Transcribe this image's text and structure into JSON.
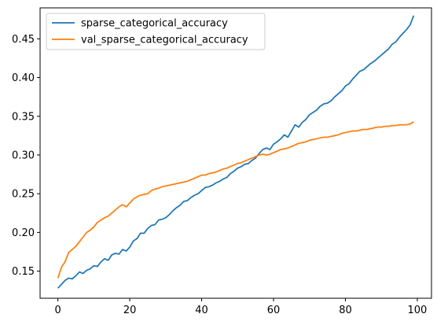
{
  "chart_data": {
    "type": "line",
    "title": "",
    "xlabel": "",
    "ylabel": "",
    "xlim": [
      -4.95,
      103.95
    ],
    "ylim": [
      0.115,
      0.49
    ],
    "xticks": [
      0,
      20,
      40,
      60,
      80,
      100
    ],
    "yticks": [
      0.15,
      0.2,
      0.25,
      0.3,
      0.35,
      0.4,
      0.45
    ],
    "xtick_labels": [
      "0",
      "20",
      "40",
      "60",
      "80",
      "100"
    ],
    "ytick_labels": [
      "0.15",
      "0.20",
      "0.25",
      "0.30",
      "0.35",
      "0.40",
      "0.45"
    ],
    "grid": false,
    "legend": "top-left",
    "series": [
      {
        "name": "sparse_categorical_accuracy",
        "color": "#1f77b4",
        "x": [
          0,
          1,
          2,
          3,
          4,
          5,
          6,
          7,
          8,
          9,
          10,
          11,
          12,
          13,
          14,
          15,
          16,
          17,
          18,
          19,
          20,
          21,
          22,
          23,
          24,
          25,
          26,
          27,
          28,
          29,
          30,
          31,
          32,
          33,
          34,
          35,
          36,
          37,
          38,
          39,
          40,
          41,
          42,
          43,
          44,
          45,
          46,
          47,
          48,
          49,
          50,
          51,
          52,
          53,
          54,
          55,
          56,
          57,
          58,
          59,
          60,
          61,
          62,
          63,
          64,
          65,
          66,
          67,
          68,
          69,
          70,
          71,
          72,
          73,
          74,
          75,
          76,
          77,
          78,
          79,
          80,
          81,
          82,
          83,
          84,
          85,
          86,
          87,
          88,
          89,
          90,
          91,
          92,
          93,
          94,
          95,
          96,
          97,
          98,
          99
        ],
        "values": [
          0.128,
          0.133,
          0.138,
          0.141,
          0.14,
          0.144,
          0.149,
          0.147,
          0.151,
          0.153,
          0.157,
          0.156,
          0.162,
          0.166,
          0.164,
          0.171,
          0.173,
          0.172,
          0.178,
          0.176,
          0.181,
          0.189,
          0.192,
          0.199,
          0.199,
          0.205,
          0.209,
          0.21,
          0.216,
          0.217,
          0.219,
          0.223,
          0.228,
          0.232,
          0.235,
          0.24,
          0.241,
          0.245,
          0.248,
          0.25,
          0.254,
          0.258,
          0.259,
          0.261,
          0.264,
          0.266,
          0.269,
          0.271,
          0.276,
          0.279,
          0.283,
          0.285,
          0.288,
          0.289,
          0.293,
          0.296,
          0.302,
          0.307,
          0.309,
          0.307,
          0.314,
          0.317,
          0.321,
          0.326,
          0.323,
          0.331,
          0.339,
          0.336,
          0.342,
          0.346,
          0.352,
          0.355,
          0.358,
          0.363,
          0.366,
          0.367,
          0.37,
          0.375,
          0.379,
          0.383,
          0.389,
          0.392,
          0.398,
          0.403,
          0.408,
          0.41,
          0.414,
          0.418,
          0.421,
          0.425,
          0.429,
          0.433,
          0.437,
          0.443,
          0.446,
          0.452,
          0.457,
          0.462,
          0.468,
          0.48
        ]
      },
      {
        "name": "val_sparse_categorical_accuracy",
        "color": "#ff7f0e",
        "x": [
          0,
          1,
          2,
          3,
          4,
          5,
          6,
          7,
          8,
          9,
          10,
          11,
          12,
          13,
          14,
          15,
          16,
          17,
          18,
          19,
          20,
          21,
          22,
          23,
          24,
          25,
          26,
          27,
          28,
          29,
          30,
          31,
          32,
          33,
          34,
          35,
          36,
          37,
          38,
          39,
          40,
          41,
          42,
          43,
          44,
          45,
          46,
          47,
          48,
          49,
          50,
          51,
          52,
          53,
          54,
          55,
          56,
          57,
          58,
          59,
          60,
          61,
          62,
          63,
          64,
          65,
          66,
          67,
          68,
          69,
          70,
          71,
          72,
          73,
          74,
          75,
          76,
          77,
          78,
          79,
          80,
          81,
          82,
          83,
          84,
          85,
          86,
          87,
          88,
          89,
          90,
          91,
          92,
          93,
          94,
          95,
          96,
          97,
          98,
          99
        ],
        "values": [
          0.141,
          0.155,
          0.162,
          0.174,
          0.178,
          0.182,
          0.188,
          0.194,
          0.2,
          0.203,
          0.207,
          0.213,
          0.216,
          0.219,
          0.221,
          0.225,
          0.229,
          0.233,
          0.236,
          0.233,
          0.238,
          0.243,
          0.246,
          0.248,
          0.249,
          0.25,
          0.254,
          0.256,
          0.257,
          0.259,
          0.26,
          0.261,
          0.262,
          0.263,
          0.264,
          0.265,
          0.266,
          0.268,
          0.27,
          0.272,
          0.274,
          0.274,
          0.276,
          0.277,
          0.278,
          0.28,
          0.282,
          0.283,
          0.285,
          0.287,
          0.289,
          0.29,
          0.292,
          0.294,
          0.296,
          0.298,
          0.3,
          0.301,
          0.3,
          0.301,
          0.303,
          0.305,
          0.307,
          0.308,
          0.309,
          0.311,
          0.313,
          0.315,
          0.316,
          0.317,
          0.319,
          0.32,
          0.321,
          0.322,
          0.323,
          0.323,
          0.324,
          0.325,
          0.326,
          0.328,
          0.329,
          0.33,
          0.331,
          0.331,
          0.332,
          0.333,
          0.333,
          0.334,
          0.335,
          0.336,
          0.336,
          0.337,
          0.337,
          0.338,
          0.338,
          0.339,
          0.339,
          0.339,
          0.34,
          0.343
        ]
      }
    ]
  }
}
